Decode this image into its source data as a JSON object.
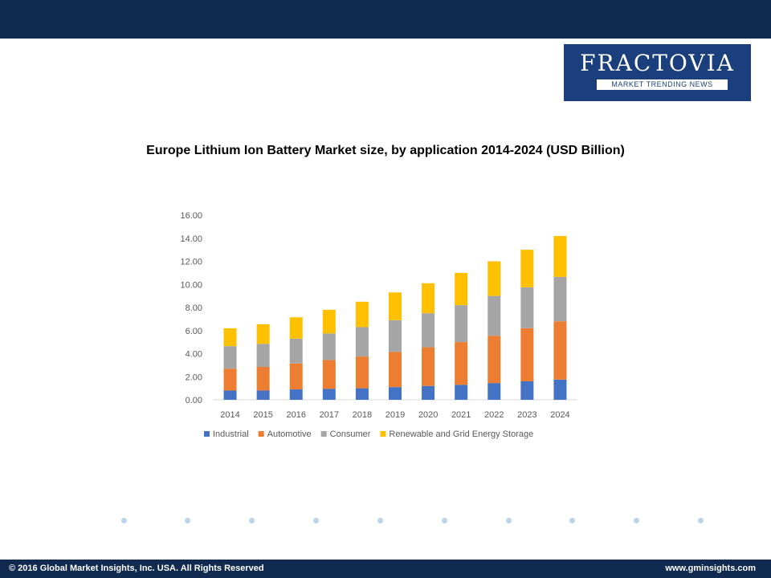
{
  "logo": {
    "name": "FRACTOVIA",
    "tagline": "MARKET TRENDING NEWS"
  },
  "footer": {
    "copyright": "© 2016 Global Market Insights, Inc. USA.  All Rights Reserved",
    "website": "www.gminsights.com"
  },
  "colors": {
    "header": "#112b50",
    "logo_bg": "#1b3f7c",
    "dots": "#bcd3ec"
  },
  "chart_data": {
    "type": "bar",
    "stacked": true,
    "title": "Europe Lithium Ion Battery Market size, by application 2014-2024 (USD Billion)",
    "xlabel": "",
    "ylabel": "",
    "categories": [
      "2014",
      "2015",
      "2016",
      "2017",
      "2018",
      "2019",
      "2020",
      "2021",
      "2022",
      "2023",
      "2024"
    ],
    "ylim": [
      0,
      16
    ],
    "yticks": [
      "0.00",
      "2.00",
      "4.00",
      "6.00",
      "8.00",
      "10.00",
      "12.00",
      "14.00",
      "16.00"
    ],
    "grid": false,
    "legend": "bottom",
    "series": [
      {
        "name": "Industrial",
        "color": "#4472c4",
        "values": [
          0.8,
          0.8,
          0.9,
          0.95,
          1.0,
          1.1,
          1.2,
          1.3,
          1.45,
          1.6,
          1.75
        ]
      },
      {
        "name": "Automotive",
        "color": "#ed7d31",
        "values": [
          1.9,
          2.05,
          2.25,
          2.5,
          2.75,
          3.05,
          3.35,
          3.7,
          4.1,
          4.6,
          5.05
        ]
      },
      {
        "name": "Consumer",
        "color": "#a5a5a5",
        "values": [
          1.95,
          2.0,
          2.15,
          2.3,
          2.55,
          2.75,
          2.95,
          3.2,
          3.45,
          3.55,
          3.85
        ]
      },
      {
        "name": "Renewable and Grid Energy Storage",
        "color": "#ffc000",
        "values": [
          1.55,
          1.7,
          1.85,
          2.05,
          2.2,
          2.4,
          2.6,
          2.8,
          3.0,
          3.25,
          3.55
        ]
      }
    ]
  }
}
